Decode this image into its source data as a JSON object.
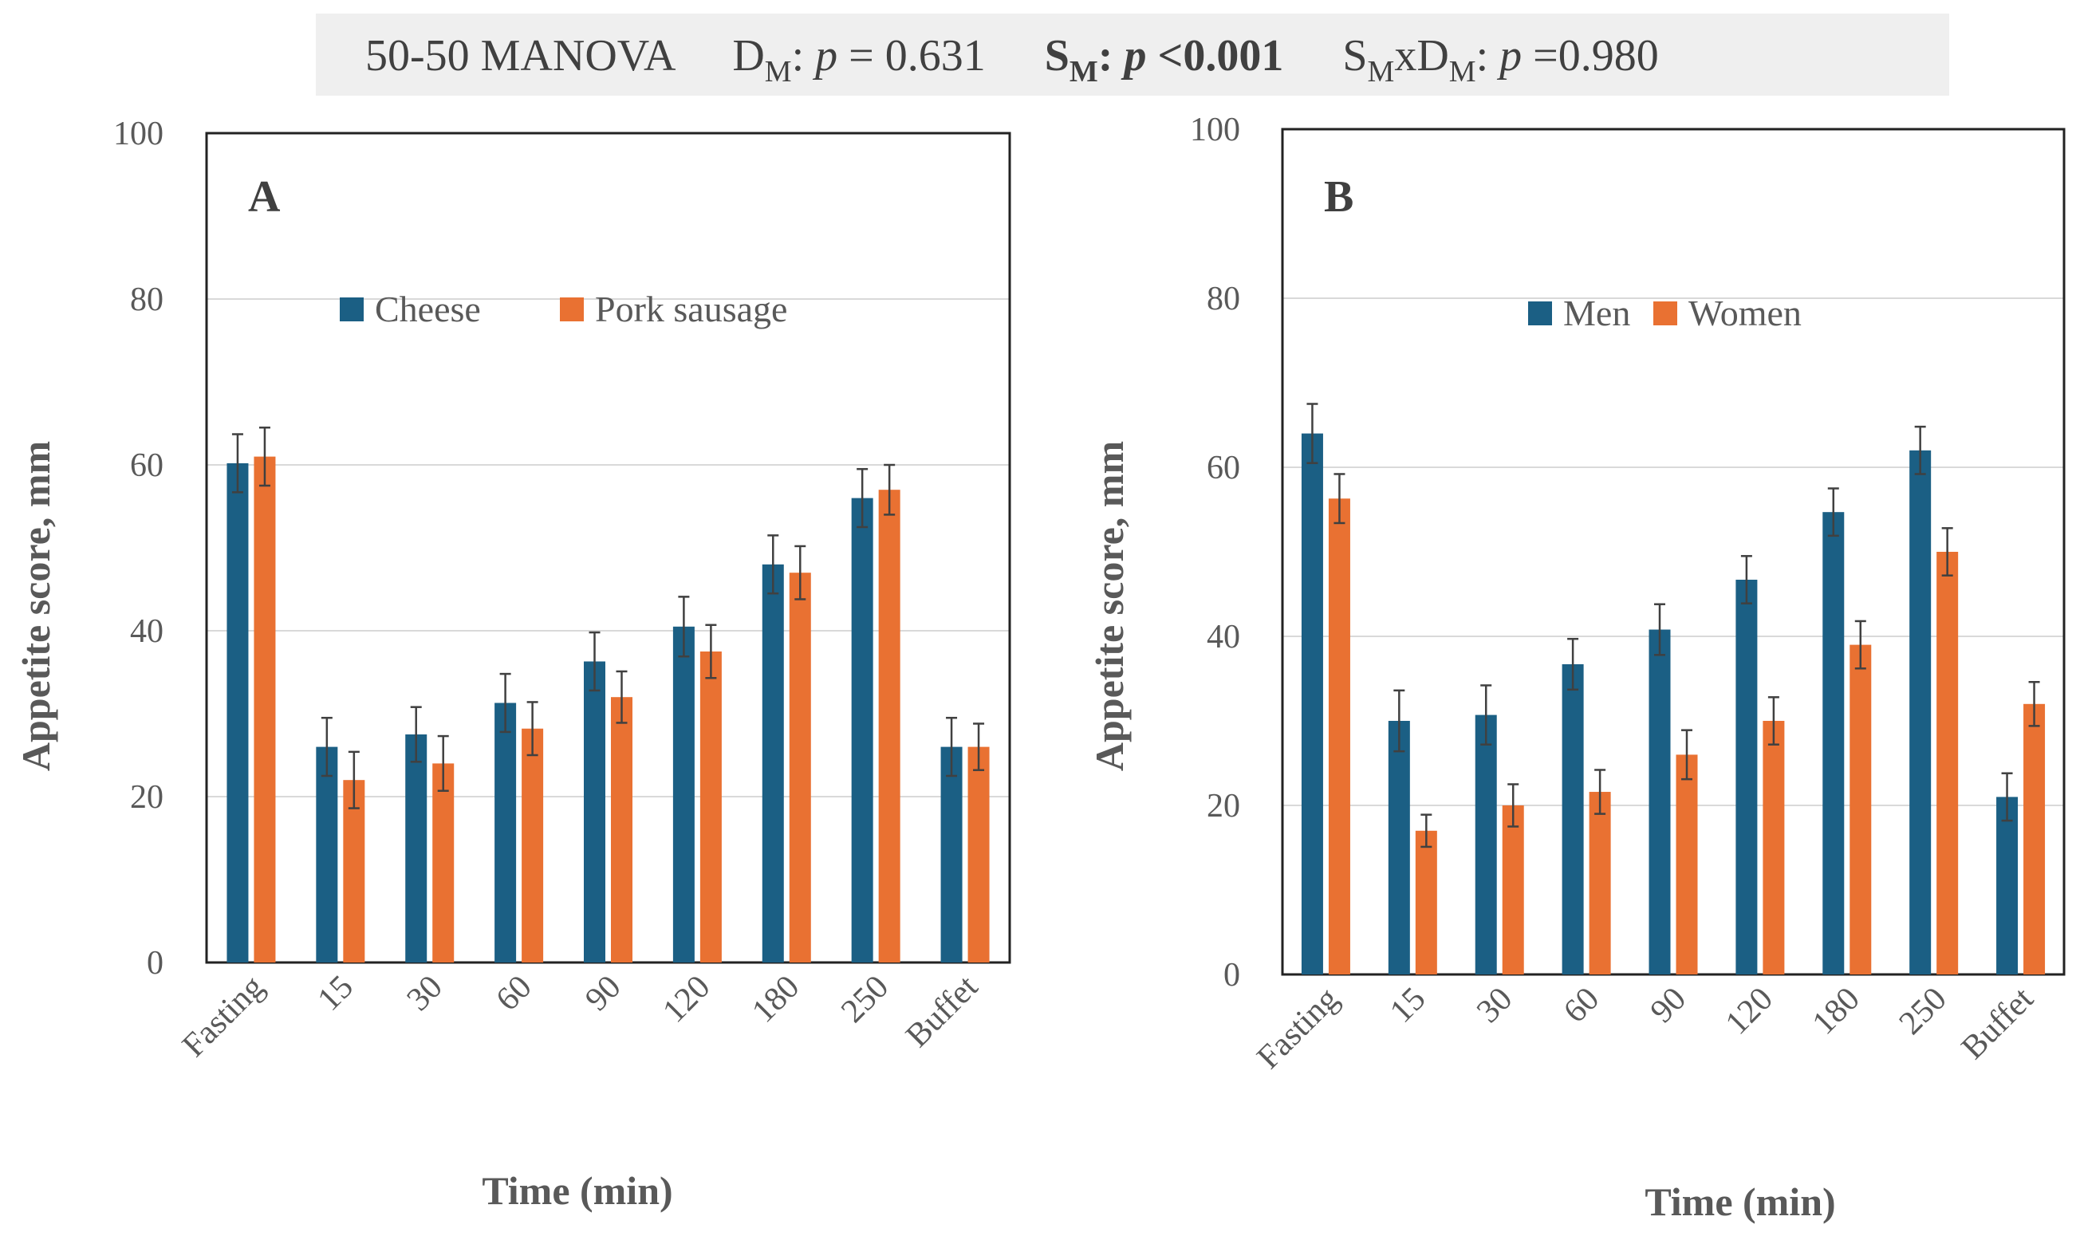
{
  "header": {
    "prefix": "50-50 MANOVA",
    "terms": [
      {
        "label": "D",
        "sub": "M",
        "p": "p",
        "rel": " = 0.631",
        "bold": false
      },
      {
        "label": "S",
        "sub": "M",
        "p": "p",
        "rel": " <0.001",
        "bold": true
      },
      {
        "label": "S",
        "sub": "M",
        "mid": "xD",
        "sub2": "M",
        "p": "p",
        "rel": " =0.980",
        "bold": false
      }
    ]
  },
  "colors": {
    "series1": "#1b5f84",
    "series2": "#e97132",
    "grid": "#d9d9d9",
    "error": "#404040",
    "header_bg": "#efefef"
  },
  "chart_data": [
    {
      "type": "bar",
      "panel": "A",
      "categories": [
        "Fasting",
        "15",
        "30",
        "60",
        "90",
        "120",
        "180",
        "250",
        "Buffet"
      ],
      "series": [
        {
          "name": "Cheese",
          "values": [
            60.2,
            26,
            27.5,
            31.3,
            36.3,
            40.5,
            48,
            56,
            26
          ],
          "errors": [
            3.5,
            3.5,
            3.3,
            3.5,
            3.5,
            3.6,
            3.5,
            3.5,
            3.5
          ]
        },
        {
          "name": "Pork sausage",
          "values": [
            61,
            22,
            24,
            28.2,
            32,
            37.5,
            47,
            57,
            26
          ],
          "errors": [
            3.5,
            3.4,
            3.3,
            3.2,
            3.1,
            3.2,
            3.2,
            3.0,
            2.8
          ]
        }
      ],
      "xlabel": "Time (min)",
      "ylabel": "Appetite score, mm",
      "ylim": [
        0,
        100
      ],
      "yticks": [
        "0",
        "20",
        "40",
        "60",
        "80",
        "100"
      ],
      "grid": true,
      "legend": "top-center"
    },
    {
      "type": "bar",
      "panel": "B",
      "categories": [
        "Fasting",
        "15",
        "30",
        "60",
        "90",
        "120",
        "180",
        "250",
        "Buffet"
      ],
      "series": [
        {
          "name": "Men",
          "values": [
            64,
            30,
            30.7,
            36.7,
            40.8,
            46.7,
            54.7,
            62,
            21
          ],
          "errors": [
            3.5,
            3.6,
            3.5,
            3.0,
            3.0,
            2.8,
            2.8,
            2.8,
            2.8
          ]
        },
        {
          "name": "Women",
          "values": [
            56.3,
            17,
            20,
            21.6,
            26,
            30,
            39,
            50,
            32
          ],
          "errors": [
            2.9,
            1.9,
            2.5,
            2.6,
            2.9,
            2.8,
            2.8,
            2.8,
            2.6
          ]
        }
      ],
      "xlabel": "Time (min)",
      "ylabel": "Appetite score, mm",
      "ylim": [
        0,
        100
      ],
      "yticks": [
        "0",
        "20",
        "40",
        "60",
        "80",
        "100"
      ],
      "grid": true,
      "legend": "top-center"
    }
  ]
}
